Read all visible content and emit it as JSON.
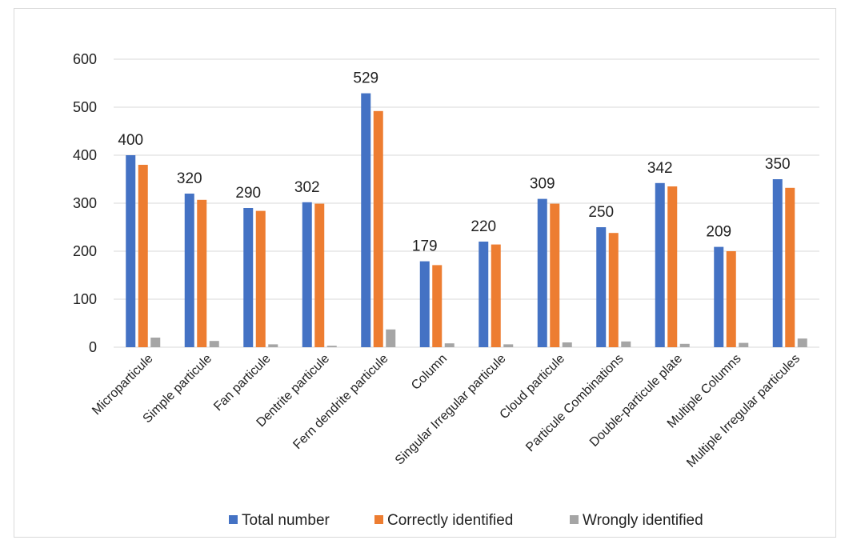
{
  "chart_data": {
    "type": "bar",
    "title": "",
    "xlabel": "",
    "ylabel": "",
    "ylim": [
      0,
      600
    ],
    "yticks": [
      0,
      100,
      200,
      300,
      400,
      500,
      600
    ],
    "grid": true,
    "legend_position": "bottom",
    "categories": [
      "Microparticule",
      "Simple particule",
      "Fan particule",
      "Dentrite particule",
      "Fern dendrite particule",
      "Column",
      "Singular Irregular particule",
      "Cloud particule",
      "Particule Combinations",
      "Double-particule plate",
      "Multiple Columns",
      "Multiple Irregular particules"
    ],
    "series": [
      {
        "name": "Total number",
        "color": "#4472c4",
        "values": [
          400,
          320,
          290,
          302,
          529,
          179,
          220,
          309,
          250,
          342,
          209,
          350
        ],
        "show_labels": true
      },
      {
        "name": "Correctly identified",
        "color": "#ed7d31",
        "values": [
          380,
          307,
          284,
          299,
          492,
          171,
          214,
          299,
          238,
          335,
          200,
          332
        ],
        "show_labels": false
      },
      {
        "name": "Wrongly identified",
        "color": "#a5a5a5",
        "values": [
          20,
          13,
          6,
          3,
          37,
          8,
          6,
          10,
          12,
          7,
          9,
          18
        ],
        "show_labels": false
      }
    ]
  }
}
